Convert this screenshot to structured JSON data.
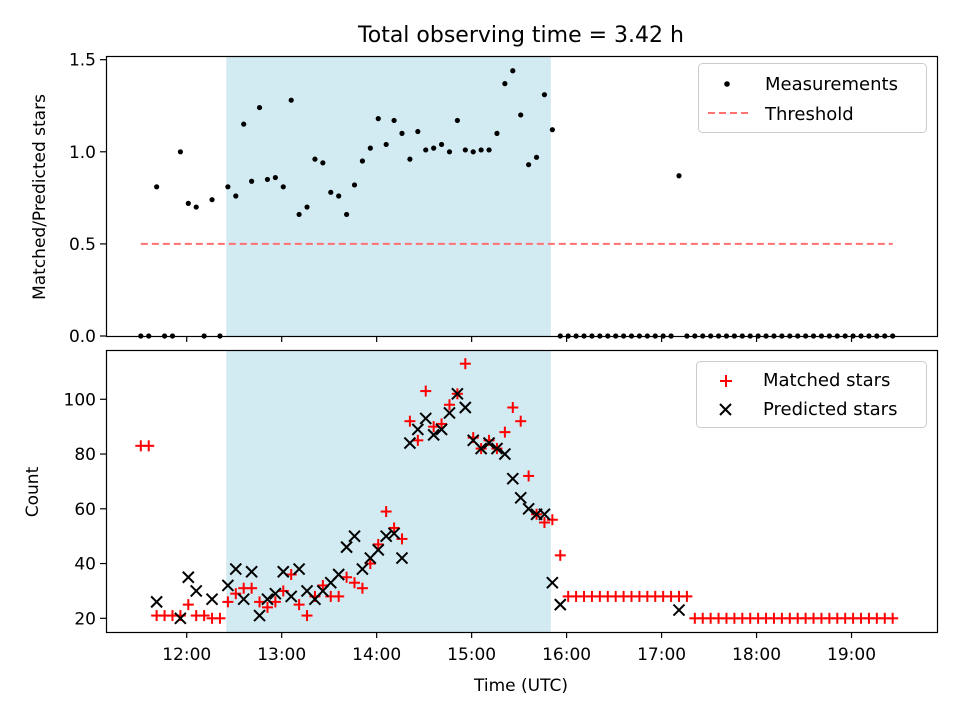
{
  "chart_data": [
    {
      "type": "scatter",
      "title": "Total observing time = 3.42 h",
      "xlabel": "",
      "ylabel": "Matched/Predicted stars",
      "xlim_hours": [
        11.15,
        19.9
      ],
      "ylim": [
        0,
        1.52
      ],
      "yticks": [
        "0.0",
        "0.5",
        "1.0",
        "1.5"
      ],
      "shaded_interval": [
        "12:25",
        "15:50"
      ],
      "shade_color": "#add8e6",
      "legend_position": "top-right",
      "series": [
        {
          "name": "Measurements",
          "marker": "dot",
          "color": "#000000",
          "points": [
            [
              "11:31",
              0.0
            ],
            [
              "11:36",
              0.0
            ],
            [
              "11:41",
              0.81
            ],
            [
              "11:46",
              0.0
            ],
            [
              "11:51",
              0.0
            ],
            [
              "11:56",
              1.0
            ],
            [
              "12:01",
              0.72
            ],
            [
              "12:06",
              0.7
            ],
            [
              "12:11",
              0.0
            ],
            [
              "12:16",
              0.74
            ],
            [
              "12:21",
              0.0
            ],
            [
              "12:26",
              0.81
            ],
            [
              "12:31",
              0.76
            ],
            [
              "12:36",
              1.15
            ],
            [
              "12:41",
              0.84
            ],
            [
              "12:46",
              1.24
            ],
            [
              "12:51",
              0.85
            ],
            [
              "12:56",
              0.86
            ],
            [
              "13:01",
              0.81
            ],
            [
              "13:06",
              1.28
            ],
            [
              "13:11",
              0.66
            ],
            [
              "13:16",
              0.7
            ],
            [
              "13:21",
              0.96
            ],
            [
              "13:26",
              0.94
            ],
            [
              "13:31",
              0.78
            ],
            [
              "13:36",
              0.76
            ],
            [
              "13:41",
              0.66
            ],
            [
              "13:46",
              0.82
            ],
            [
              "13:51",
              0.95
            ],
            [
              "13:56",
              1.02
            ],
            [
              "14:01",
              1.18
            ],
            [
              "14:06",
              1.04
            ],
            [
              "14:11",
              1.17
            ],
            [
              "14:16",
              1.1
            ],
            [
              "14:21",
              0.96
            ],
            [
              "14:26",
              1.11
            ],
            [
              "14:31",
              1.01
            ],
            [
              "14:36",
              1.02
            ],
            [
              "14:41",
              1.04
            ],
            [
              "14:46",
              1.0
            ],
            [
              "14:51",
              1.17
            ],
            [
              "14:56",
              1.01
            ],
            [
              "15:01",
              1.0
            ],
            [
              "15:06",
              1.01
            ],
            [
              "15:11",
              1.01
            ],
            [
              "15:16",
              1.1
            ],
            [
              "15:21",
              1.37
            ],
            [
              "15:26",
              1.44
            ],
            [
              "15:31",
              1.2
            ],
            [
              "15:36",
              0.93
            ],
            [
              "15:41",
              0.97
            ],
            [
              "15:46",
              1.31
            ],
            [
              "15:51",
              1.12
            ],
            [
              "15:56",
              0.0
            ],
            [
              "16:01",
              0.0
            ],
            [
              "16:06",
              0.0
            ],
            [
              "16:11",
              0.0
            ],
            [
              "16:16",
              0.0
            ],
            [
              "16:21",
              0.0
            ],
            [
              "16:26",
              0.0
            ],
            [
              "16:31",
              0.0
            ],
            [
              "16:36",
              0.0
            ],
            [
              "16:41",
              0.0
            ],
            [
              "16:46",
              0.0
            ],
            [
              "16:51",
              0.0
            ],
            [
              "16:56",
              0.0
            ],
            [
              "17:01",
              0.0
            ],
            [
              "17:06",
              0.0
            ],
            [
              "17:11",
              0.87
            ],
            [
              "17:16",
              0.0
            ],
            [
              "17:21",
              0.0
            ],
            [
              "17:26",
              0.0
            ],
            [
              "17:31",
              0.0
            ],
            [
              "17:36",
              0.0
            ],
            [
              "17:41",
              0.0
            ],
            [
              "17:46",
              0.0
            ],
            [
              "17:51",
              0.0
            ],
            [
              "17:56",
              0.0
            ],
            [
              "18:01",
              0.0
            ],
            [
              "18:06",
              0.0
            ],
            [
              "18:11",
              0.0
            ],
            [
              "18:16",
              0.0
            ],
            [
              "18:21",
              0.0
            ],
            [
              "18:26",
              0.0
            ],
            [
              "18:31",
              0.0
            ],
            [
              "18:36",
              0.0
            ],
            [
              "18:41",
              0.0
            ],
            [
              "18:46",
              0.0
            ],
            [
              "18:51",
              0.0
            ],
            [
              "18:56",
              0.0
            ],
            [
              "19:01",
              0.0
            ],
            [
              "19:06",
              0.0
            ],
            [
              "19:11",
              0.0
            ],
            [
              "19:16",
              0.0
            ],
            [
              "19:21",
              0.0
            ],
            [
              "19:26",
              0.0
            ]
          ]
        },
        {
          "name": "Threshold",
          "marker": "dashed-line",
          "color": "#ff7070",
          "x_range": [
            "11:31",
            "19:26"
          ],
          "y": 0.5
        }
      ]
    },
    {
      "type": "scatter",
      "title": "",
      "xlabel": "Time (UTC)",
      "ylabel": "Count",
      "xlim_hours": [
        11.15,
        19.9
      ],
      "ylim": [
        15,
        118
      ],
      "yticks": [
        "20",
        "40",
        "60",
        "80",
        "100"
      ],
      "xticks": [
        "12:00",
        "13:00",
        "14:00",
        "15:00",
        "16:00",
        "17:00",
        "18:00",
        "19:00"
      ],
      "shaded_interval": [
        "12:25",
        "15:50"
      ],
      "shade_color": "#add8e6",
      "legend_position": "top-right",
      "series": [
        {
          "name": "Matched stars",
          "marker": "plus",
          "color": "#ff0000",
          "points": [
            [
              "11:31",
              83
            ],
            [
              "11:36",
              83
            ],
            [
              "11:41",
              21
            ],
            [
              "11:46",
              21
            ],
            [
              "11:51",
              21
            ],
            [
              "11:56",
              21
            ],
            [
              "12:01",
              25
            ],
            [
              "12:06",
              21
            ],
            [
              "12:11",
              21
            ],
            [
              "12:16",
              20
            ],
            [
              "12:21",
              20
            ],
            [
              "12:26",
              26
            ],
            [
              "12:31",
              29
            ],
            [
              "12:36",
              31
            ],
            [
              "12:41",
              31
            ],
            [
              "12:46",
              26
            ],
            [
              "12:51",
              24
            ],
            [
              "12:56",
              26
            ],
            [
              "13:01",
              30
            ],
            [
              "13:06",
              36
            ],
            [
              "13:11",
              25
            ],
            [
              "13:16",
              21
            ],
            [
              "13:21",
              28
            ],
            [
              "13:26",
              32
            ],
            [
              "13:31",
              28
            ],
            [
              "13:36",
              28
            ],
            [
              "13:41",
              35
            ],
            [
              "13:46",
              33
            ],
            [
              "13:51",
              31
            ],
            [
              "13:56",
              40
            ],
            [
              "14:01",
              47
            ],
            [
              "14:06",
              59
            ],
            [
              "14:11",
              53
            ],
            [
              "14:16",
              49
            ],
            [
              "14:21",
              92
            ],
            [
              "14:26",
              85
            ],
            [
              "14:31",
              103
            ],
            [
              "14:36",
              90
            ],
            [
              "14:41",
              91
            ],
            [
              "14:46",
              98
            ],
            [
              "14:51",
              102
            ],
            [
              "14:56",
              113
            ],
            [
              "15:01",
              86
            ],
            [
              "15:06",
              82
            ],
            [
              "15:11",
              85
            ],
            [
              "15:16",
              82
            ],
            [
              "15:21",
              88
            ],
            [
              "15:26",
              97
            ],
            [
              "15:31",
              92
            ],
            [
              "15:36",
              72
            ],
            [
              "15:41",
              58
            ],
            [
              "15:46",
              55
            ],
            [
              "15:51",
              56
            ],
            [
              "15:56",
              43
            ],
            [
              "16:01",
              28
            ],
            [
              "16:06",
              28
            ],
            [
              "16:11",
              28
            ],
            [
              "16:16",
              28
            ],
            [
              "16:21",
              28
            ],
            [
              "16:26",
              28
            ],
            [
              "16:31",
              28
            ],
            [
              "16:36",
              28
            ],
            [
              "16:41",
              28
            ],
            [
              "16:46",
              28
            ],
            [
              "16:51",
              28
            ],
            [
              "16:56",
              28
            ],
            [
              "17:01",
              28
            ],
            [
              "17:06",
              28
            ],
            [
              "17:11",
              28
            ],
            [
              "17:16",
              28
            ],
            [
              "17:21",
              20
            ],
            [
              "17:26",
              20
            ],
            [
              "17:31",
              20
            ],
            [
              "17:36",
              20
            ],
            [
              "17:41",
              20
            ],
            [
              "17:46",
              20
            ],
            [
              "17:51",
              20
            ],
            [
              "17:56",
              20
            ],
            [
              "18:01",
              20
            ],
            [
              "18:06",
              20
            ],
            [
              "18:11",
              20
            ],
            [
              "18:16",
              20
            ],
            [
              "18:21",
              20
            ],
            [
              "18:26",
              20
            ],
            [
              "18:31",
              20
            ],
            [
              "18:36",
              20
            ],
            [
              "18:41",
              20
            ],
            [
              "18:46",
              20
            ],
            [
              "18:51",
              20
            ],
            [
              "18:56",
              20
            ],
            [
              "19:01",
              20
            ],
            [
              "19:06",
              20
            ],
            [
              "19:11",
              20
            ],
            [
              "19:16",
              20
            ],
            [
              "19:21",
              20
            ],
            [
              "19:26",
              20
            ]
          ]
        },
        {
          "name": "Predicted stars",
          "marker": "x",
          "color": "#000000",
          "points": [
            [
              "11:41",
              26
            ],
            [
              "11:56",
              20
            ],
            [
              "12:01",
              35
            ],
            [
              "12:06",
              30
            ],
            [
              "12:16",
              27
            ],
            [
              "12:26",
              32
            ],
            [
              "12:31",
              38
            ],
            [
              "12:36",
              27
            ],
            [
              "12:41",
              37
            ],
            [
              "12:46",
              21
            ],
            [
              "12:51",
              27
            ],
            [
              "12:56",
              29
            ],
            [
              "13:01",
              37
            ],
            [
              "13:06",
              28
            ],
            [
              "13:11",
              38
            ],
            [
              "13:16",
              30
            ],
            [
              "13:21",
              27
            ],
            [
              "13:26",
              30
            ],
            [
              "13:31",
              33
            ],
            [
              "13:36",
              36
            ],
            [
              "13:41",
              46
            ],
            [
              "13:46",
              50
            ],
            [
              "13:51",
              38
            ],
            [
              "13:56",
              42
            ],
            [
              "14:01",
              45
            ],
            [
              "14:06",
              50
            ],
            [
              "14:11",
              51
            ],
            [
              "14:16",
              42
            ],
            [
              "14:21",
              84
            ],
            [
              "14:26",
              89
            ],
            [
              "14:31",
              93
            ],
            [
              "14:36",
              87
            ],
            [
              "14:41",
              89
            ],
            [
              "14:46",
              95
            ],
            [
              "14:51",
              102
            ],
            [
              "14:56",
              97
            ],
            [
              "15:01",
              85
            ],
            [
              "15:06",
              82
            ],
            [
              "15:11",
              84
            ],
            [
              "15:16",
              82
            ],
            [
              "15:21",
              80
            ],
            [
              "15:26",
              71
            ],
            [
              "15:31",
              64
            ],
            [
              "15:36",
              60
            ],
            [
              "15:41",
              58
            ],
            [
              "15:46",
              58
            ],
            [
              "15:51",
              33
            ],
            [
              "15:56",
              25
            ],
            [
              "17:11",
              23
            ]
          ]
        }
      ]
    }
  ]
}
